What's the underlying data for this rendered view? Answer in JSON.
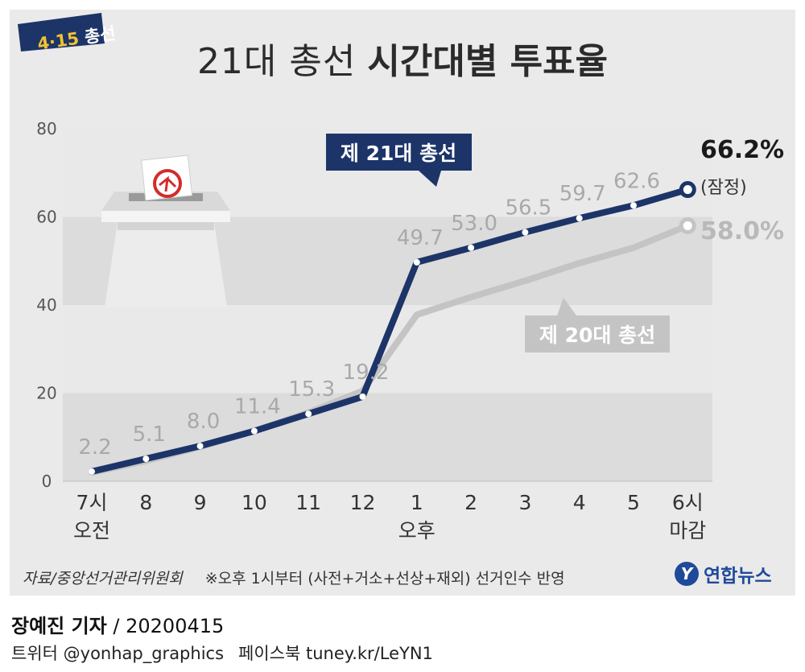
{
  "badge": {
    "year": "4·15",
    "label": "총선"
  },
  "title": {
    "light": "21대 총선",
    "bold": "시간대별 투표율"
  },
  "chart_data": {
    "type": "line",
    "title": "21대 총선 시간대별 투표율",
    "xlabel": "",
    "ylabel": "",
    "ylim": [
      0,
      80
    ],
    "y_ticks": [
      "0",
      "20",
      "40",
      "60",
      "80"
    ],
    "categories": [
      "7시",
      "8",
      "9",
      "10",
      "11",
      "12",
      "1",
      "2",
      "3",
      "4",
      "5",
      "6시"
    ],
    "category_sublabels": {
      "0": "오전",
      "6": "오후",
      "11": "마감"
    },
    "series": [
      {
        "name": "제 21대 총선",
        "color": "#1c3468",
        "values": [
          2.2,
          5.1,
          8.0,
          11.4,
          15.3,
          19.2,
          49.7,
          53.0,
          56.5,
          59.7,
          62.6,
          66.2
        ],
        "value_labels": [
          "2.2",
          "5.1",
          "8.0",
          "11.4",
          "15.3",
          "19.2",
          "49.7",
          "53.0",
          "56.5",
          "59.7",
          "62.6"
        ],
        "final_label": "66.2%",
        "final_note": "(잠정)"
      },
      {
        "name": "제 20대 총선",
        "color": "#c4c4c4",
        "values": [
          2.0,
          4.6,
          7.8,
          11.4,
          15.6,
          20.5,
          37.8,
          41.8,
          45.5,
          49.5,
          53.0,
          58.0
        ],
        "final_label": "58.0%"
      }
    ],
    "grid": "horizontal bands",
    "legend": "inline callouts"
  },
  "footer": {
    "source": "자료/중앙선거관리위원회",
    "note": "※오후 1시부터 (사전+거소+선상+재외) 선거인수 반영"
  },
  "logo": {
    "mark": "Y",
    "text": "연합뉴스"
  },
  "byline": {
    "name": "장예진 기자",
    "date": " / 20200415",
    "twitter": "트위터 @yonhap_graphics",
    "facebook": "페이스북 tuney.kr/LeYN1"
  }
}
